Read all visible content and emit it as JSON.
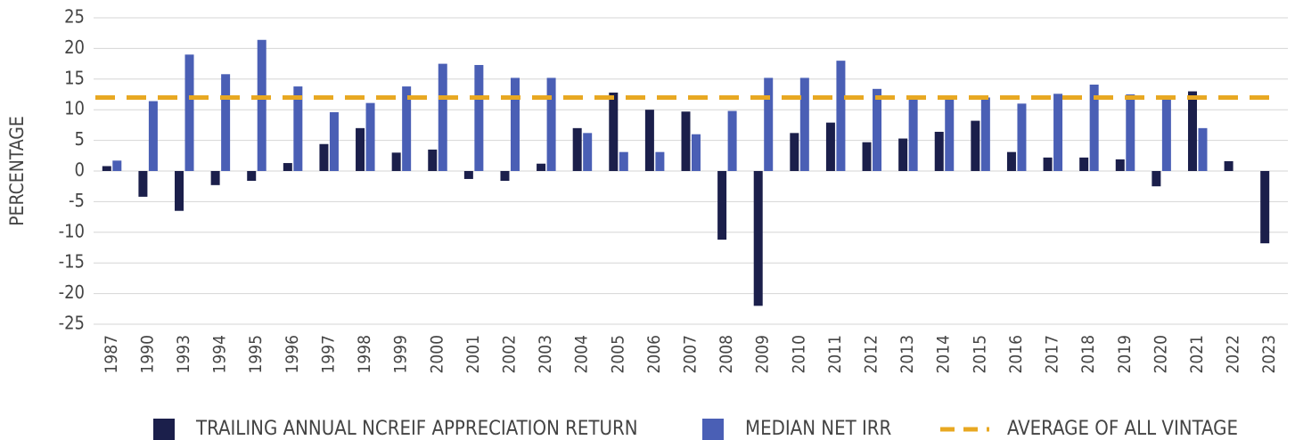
{
  "chart_data": {
    "type": "bar",
    "ylabel": "PERCENTAGE",
    "categories": [
      "1987",
      "1990",
      "1993",
      "1994",
      "1995",
      "1996",
      "1997",
      "1998",
      "1999",
      "2000",
      "2001",
      "2002",
      "2003",
      "2004",
      "2005",
      "2006",
      "2007",
      "2008",
      "2009",
      "2010",
      "2011",
      "2012",
      "2013",
      "2014",
      "2015",
      "2016",
      "2017",
      "2018",
      "2019",
      "2020",
      "2021",
      "2022",
      "2023"
    ],
    "series": [
      {
        "name": "TRAILING ANNUAL NCREIF APPRECIATION RETURN",
        "color": "#1b1f4b",
        "values": [
          0.8,
          -4.2,
          -6.5,
          -2.3,
          -1.6,
          1.3,
          4.4,
          7,
          3,
          3.5,
          -1.3,
          -1.6,
          1.2,
          7,
          12.8,
          10,
          9.7,
          -11.2,
          -22,
          6.2,
          7.9,
          4.7,
          5.3,
          6.4,
          8.2,
          3.1,
          2.2,
          2.2,
          1.9,
          -2.5,
          13,
          1.6,
          -11.8
        ]
      },
      {
        "name": "MEDIAN NET IRR",
        "color": "#4a5fb5",
        "values": [
          1.7,
          11.4,
          19,
          15.8,
          21.4,
          13.8,
          9.6,
          11.1,
          13.8,
          17.5,
          17.3,
          15.2,
          15.2,
          6.2,
          3.1,
          3.1,
          6,
          9.8,
          15.2,
          15.2,
          18,
          13.4,
          12,
          12,
          12,
          11,
          12.6,
          14.1,
          12.5,
          11.7,
          7,
          null,
          null
        ]
      }
    ],
    "reference_line": {
      "name": "AVERAGE OF ALL VINTAGE",
      "color": "#e8a822",
      "value": 12
    },
    "ylim": [
      -25,
      25
    ],
    "yticks": [
      -25,
      -20,
      -15,
      -10,
      -5,
      0,
      5,
      10,
      15,
      20,
      25
    ],
    "grid": true
  }
}
